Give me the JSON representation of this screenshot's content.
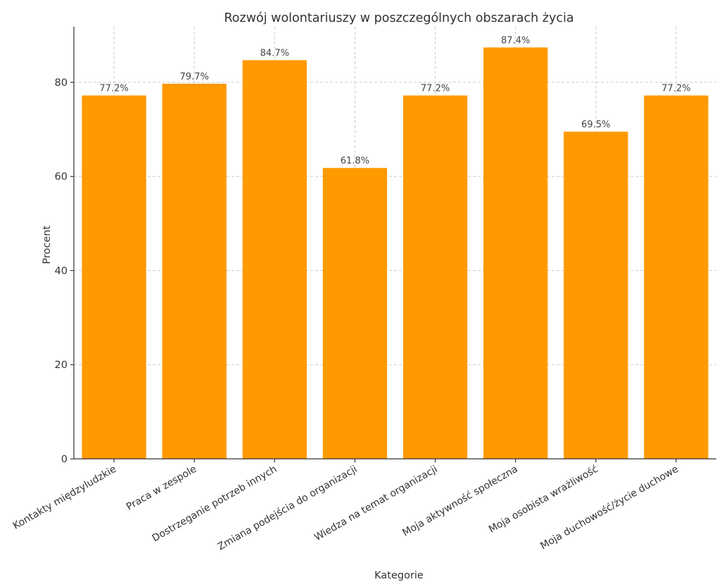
{
  "chart_data": {
    "type": "bar",
    "title": "Rozwój wolontariuszy w poszczególnych obszarach życia",
    "xlabel": "Kategorie",
    "ylabel": "Procent",
    "categories": [
      "Kontakty międzyludzkie",
      "Praca w zespole",
      "Dostrzeganie potrzeb innych",
      "Zmiana podejścia do organizacji",
      "Wiedza na temat organizacji",
      "Moja aktywność społeczna",
      "Moja osobista wrażliwość",
      "Moja duchowość/życie duchowe"
    ],
    "values": [
      77.2,
      79.7,
      84.7,
      61.8,
      77.2,
      87.4,
      69.5,
      77.2
    ],
    "data_labels": [
      "77.2%",
      "79.7%",
      "84.7%",
      "61.8%",
      "77.2%",
      "87.4%",
      "69.5%",
      "77.2%"
    ],
    "ylim": [
      0,
      91.8
    ],
    "yticks": [
      0,
      20,
      40,
      60,
      80
    ],
    "grid": true,
    "bar_color": "#ff9900"
  }
}
